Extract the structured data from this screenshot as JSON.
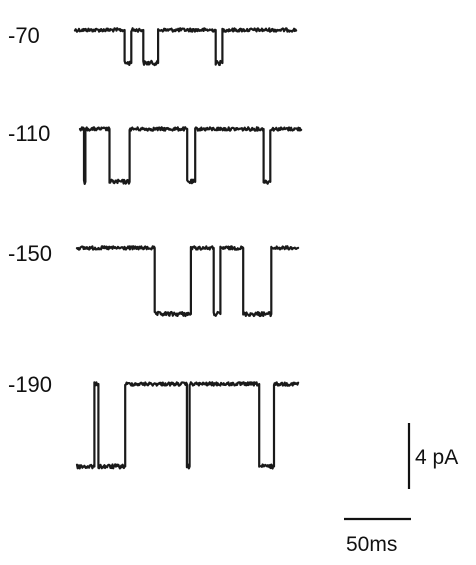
{
  "chart_data": {
    "type": "line",
    "title": "",
    "units": {
      "voltage": "",
      "current": "pA",
      "time": "ms"
    },
    "series": [
      {
        "label": "-70",
        "voltage": -70,
        "closed_level_pA": 0,
        "open_level_pA": -2.0,
        "openings_ms": [
          [
            37,
            42
          ],
          [
            51,
            62
          ],
          [
            105,
            110
          ]
        ]
      },
      {
        "label": "-110",
        "voltage": -110,
        "closed_level_pA": 0,
        "open_level_pA": -3.2,
        "openings_ms": [
          [
            3,
            4
          ],
          [
            22,
            37
          ],
          [
            80,
            86
          ],
          [
            137,
            142
          ]
        ]
      },
      {
        "label": "-150",
        "voltage": -150,
        "closed_level_pA": 0,
        "open_level_pA": -4.0,
        "openings_ms": [
          [
            58,
            85
          ],
          [
            102,
            107
          ],
          [
            124,
            145
          ]
        ]
      },
      {
        "label": "-190",
        "voltage": -190,
        "closed_level_pA": 0,
        "open_level_pA": -5.0,
        "openings_ms": [
          [
            0,
            13
          ],
          [
            16,
            36
          ],
          [
            82,
            84
          ],
          [
            136,
            147
          ]
        ]
      }
    ],
    "trace_duration_ms": 165,
    "scale_bars": {
      "current": {
        "value": 4,
        "label": "4 pA"
      },
      "time": {
        "value": 50,
        "label": "50ms"
      }
    }
  }
}
